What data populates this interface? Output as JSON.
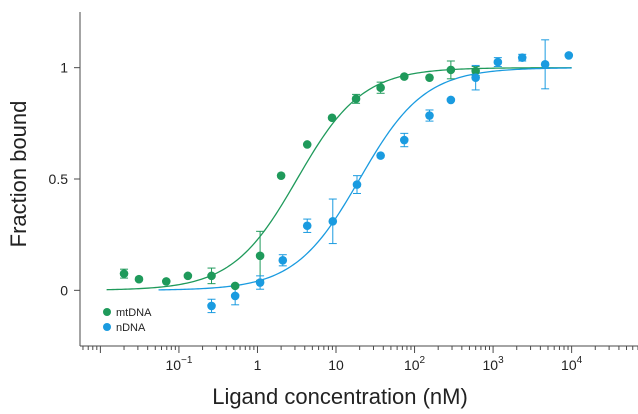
{
  "chart_data": {
    "type": "scatter",
    "title": "",
    "xlabel": "Ligand concentration (nM)",
    "ylabel": "Fraction bound",
    "x_scale": "log",
    "xlim": [
      0.0055,
      70000
    ],
    "ylim": [
      -0.25,
      1.25
    ],
    "x_tick_labels": [
      {
        "value": 0.1,
        "base": "10",
        "exp": "−1"
      },
      {
        "value": 1,
        "text": "1"
      },
      {
        "value": 10,
        "text": "10"
      },
      {
        "value": 100,
        "base": "10",
        "exp": "2"
      },
      {
        "value": 1000,
        "base": "10",
        "exp": "3"
      },
      {
        "value": 10000,
        "base": "10",
        "exp": "4"
      }
    ],
    "y_ticks": [
      {
        "value": 0,
        "label": "0"
      },
      {
        "value": 0.5,
        "label": "0.5"
      },
      {
        "value": 1,
        "label": "1"
      }
    ],
    "grid": false,
    "legend_position": "bottom-left",
    "series": [
      {
        "name": "mtDNA",
        "color": "#1f9a5b",
        "points": [
          {
            "x": 0.02,
            "y": 0.075,
            "err": 0.02
          },
          {
            "x": 0.031,
            "y": 0.05,
            "err": 0
          },
          {
            "x": 0.069,
            "y": 0.04,
            "err": 0
          },
          {
            "x": 0.13,
            "y": 0.065,
            "err": 0
          },
          {
            "x": 0.26,
            "y": 0.065,
            "err": 0.035
          },
          {
            "x": 0.52,
            "y": 0.02,
            "err": 0
          },
          {
            "x": 1.08,
            "y": 0.155,
            "err": 0.11
          },
          {
            "x": 2.0,
            "y": 0.515,
            "err": 0
          },
          {
            "x": 4.3,
            "y": 0.655,
            "err": 0
          },
          {
            "x": 8.9,
            "y": 0.775,
            "err": 0
          },
          {
            "x": 18,
            "y": 0.86,
            "err": 0.02
          },
          {
            "x": 37,
            "y": 0.91,
            "err": 0.025
          },
          {
            "x": 74,
            "y": 0.96,
            "err": 0
          },
          {
            "x": 155,
            "y": 0.955,
            "err": 0
          },
          {
            "x": 290,
            "y": 0.99,
            "err": 0.04
          },
          {
            "x": 600,
            "y": 0.985,
            "err": 0.02
          }
        ],
        "fit": {
          "ec50": 3.2,
          "hill": 1.05
        }
      },
      {
        "name": "nDNA",
        "color": "#1a9be0",
        "points": [
          {
            "x": 0.26,
            "y": -0.07,
            "err": 0.03
          },
          {
            "x": 0.52,
            "y": -0.025,
            "err": 0.04
          },
          {
            "x": 1.08,
            "y": 0.035,
            "err": 0.03
          },
          {
            "x": 2.1,
            "y": 0.135,
            "err": 0.025
          },
          {
            "x": 4.3,
            "y": 0.29,
            "err": 0.03
          },
          {
            "x": 9.1,
            "y": 0.31,
            "err": 0.1
          },
          {
            "x": 18.5,
            "y": 0.475,
            "err": 0.04
          },
          {
            "x": 37,
            "y": 0.605,
            "err": 0
          },
          {
            "x": 74,
            "y": 0.675,
            "err": 0.03
          },
          {
            "x": 155,
            "y": 0.785,
            "err": 0.025
          },
          {
            "x": 290,
            "y": 0.855,
            "err": 0
          },
          {
            "x": 600,
            "y": 0.955,
            "err": 0.055
          },
          {
            "x": 1150,
            "y": 1.025,
            "err": 0.02
          },
          {
            "x": 2350,
            "y": 1.045,
            "err": 0.015
          },
          {
            "x": 4600,
            "y": 1.015,
            "err": 0.11
          },
          {
            "x": 9200,
            "y": 1.055,
            "err": 0
          }
        ],
        "fit": {
          "ec50": 20,
          "hill": 1.05
        }
      }
    ]
  }
}
